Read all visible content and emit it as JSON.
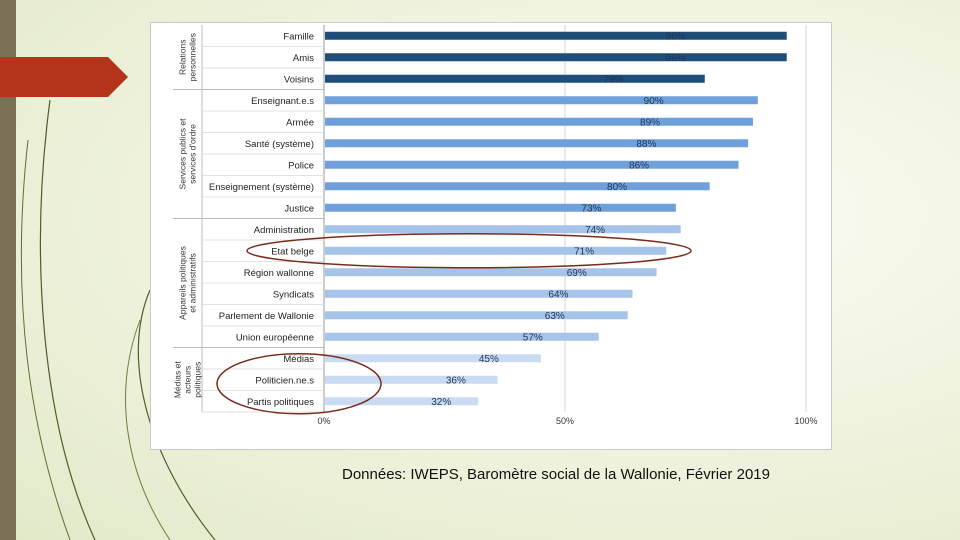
{
  "slide": {
    "source_text": "Données: IWEPS, Baromètre social de la Wallonie, Février 2019",
    "accent_color": "#b3341b",
    "strip_color": "#7a7156"
  },
  "chart_data": {
    "type": "bar",
    "orientation": "horizontal",
    "xlim": [
      0,
      100
    ],
    "x_ticks": [
      "0%",
      "50%",
      "100%"
    ],
    "grid": true,
    "groups": [
      {
        "label": "Relations personnelles",
        "categories": [
          "Famille",
          "Amis",
          "Voisins"
        ],
        "values": [
          96,
          96,
          79
        ],
        "labels": [
          "96%",
          "96%",
          "79%"
        ],
        "color": "#1f4e79"
      },
      {
        "label": "Services publics et services d'ordre",
        "categories": [
          "Enseignant.e.s",
          "Armée",
          "Santé (système)",
          "Police",
          "Enseignement (système)",
          "Justice"
        ],
        "values": [
          90,
          89,
          88,
          86,
          80,
          73
        ],
        "labels": [
          "90%",
          "89%",
          "88%",
          "86%",
          "80%",
          "73%"
        ],
        "color": "#6fa0dc"
      },
      {
        "label": "Appareils politiques et administratifs",
        "categories": [
          "Administration",
          "Etat belge",
          "Région wallonne",
          "Syndicats",
          "Parlement de Wallonie",
          "Union européenne"
        ],
        "values": [
          74,
          71,
          69,
          64,
          63,
          57
        ],
        "labels": [
          "74%",
          "71%",
          "69%",
          "64%",
          "63%",
          "57%"
        ],
        "color": "#a6c3ea"
      },
      {
        "label": "Médias et acteurs politiques",
        "categories": [
          "Médias",
          "Politicien.ne.s",
          "Partis politiques"
        ],
        "values": [
          45,
          36,
          32
        ],
        "labels": [
          "45%",
          "36%",
          "32%"
        ],
        "color": "#c9dbf3"
      }
    ],
    "highlights": [
      "Etat belge",
      "Médias et acteurs politiques"
    ]
  }
}
